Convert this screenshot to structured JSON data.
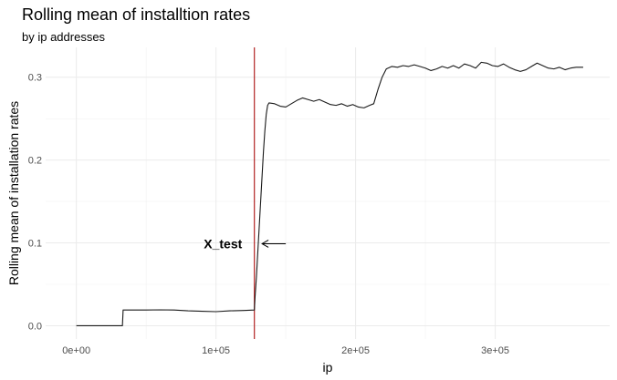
{
  "chart_data": {
    "type": "line",
    "title": "Rolling mean of installtion rates",
    "subtitle": "by ip addresses",
    "xlabel": "ip",
    "ylabel": "Rolling mean of installation rates",
    "xlim": [
      -22000,
      382000
    ],
    "ylim": [
      -0.016,
      0.336
    ],
    "x_ticks": [
      {
        "value": 0,
        "label": "0e+00"
      },
      {
        "value": 100000,
        "label": "1e+05"
      },
      {
        "value": 200000,
        "label": "2e+05"
      },
      {
        "value": 300000,
        "label": "3e+05"
      }
    ],
    "y_ticks": [
      {
        "value": 0.0,
        "label": "0.0"
      },
      {
        "value": 0.1,
        "label": "0.1"
      },
      {
        "value": 0.2,
        "label": "0.2"
      },
      {
        "value": 0.3,
        "label": "0.3"
      }
    ],
    "grid": true,
    "series": [
      {
        "color": "#1a1a1a",
        "points": [
          [
            0,
            0.0
          ],
          [
            33000,
            0.0
          ],
          [
            33500,
            0.019
          ],
          [
            50000,
            0.019
          ],
          [
            60000,
            0.0192
          ],
          [
            70000,
            0.019
          ],
          [
            80000,
            0.018
          ],
          [
            90000,
            0.0175
          ],
          [
            100000,
            0.017
          ],
          [
            110000,
            0.018
          ],
          [
            120000,
            0.0185
          ],
          [
            127500,
            0.019
          ],
          [
            128000,
            0.035
          ],
          [
            129000,
            0.06
          ],
          [
            130000,
            0.09
          ],
          [
            131000,
            0.12
          ],
          [
            132000,
            0.15
          ],
          [
            133000,
            0.18
          ],
          [
            134000,
            0.21
          ],
          [
            135000,
            0.235
          ],
          [
            136000,
            0.255
          ],
          [
            137000,
            0.266
          ],
          [
            138000,
            0.269
          ],
          [
            142000,
            0.268
          ],
          [
            146000,
            0.265
          ],
          [
            150000,
            0.264
          ],
          [
            154000,
            0.268
          ],
          [
            158000,
            0.272
          ],
          [
            162000,
            0.275
          ],
          [
            166000,
            0.273
          ],
          [
            170000,
            0.271
          ],
          [
            174000,
            0.273
          ],
          [
            178000,
            0.27
          ],
          [
            182000,
            0.267
          ],
          [
            186000,
            0.266
          ],
          [
            190000,
            0.268
          ],
          [
            194000,
            0.265
          ],
          [
            198000,
            0.267
          ],
          [
            202000,
            0.264
          ],
          [
            206000,
            0.263
          ],
          [
            210000,
            0.266
          ],
          [
            213000,
            0.268
          ],
          [
            216000,
            0.285
          ],
          [
            219000,
            0.3
          ],
          [
            222000,
            0.31
          ],
          [
            226000,
            0.313
          ],
          [
            230000,
            0.312
          ],
          [
            234000,
            0.314
          ],
          [
            238000,
            0.313
          ],
          [
            242000,
            0.315
          ],
          [
            246000,
            0.313
          ],
          [
            250000,
            0.311
          ],
          [
            254000,
            0.308
          ],
          [
            258000,
            0.31
          ],
          [
            262000,
            0.313
          ],
          [
            266000,
            0.311
          ],
          [
            270000,
            0.314
          ],
          [
            274000,
            0.311
          ],
          [
            278000,
            0.316
          ],
          [
            282000,
            0.314
          ],
          [
            286000,
            0.311
          ],
          [
            290000,
            0.318
          ],
          [
            294000,
            0.317
          ],
          [
            298000,
            0.314
          ],
          [
            302000,
            0.313
          ],
          [
            306000,
            0.316
          ],
          [
            310000,
            0.312
          ],
          [
            314000,
            0.309
          ],
          [
            318000,
            0.307
          ],
          [
            322000,
            0.309
          ],
          [
            326000,
            0.313
          ],
          [
            330000,
            0.317
          ],
          [
            334000,
            0.314
          ],
          [
            338000,
            0.311
          ],
          [
            342000,
            0.31
          ],
          [
            346000,
            0.312
          ],
          [
            350000,
            0.309
          ],
          [
            354000,
            0.311
          ],
          [
            358000,
            0.312
          ],
          [
            363000,
            0.312
          ]
        ]
      }
    ],
    "vline": {
      "x": 127500,
      "color": "#b22222"
    },
    "annotation": {
      "text": "X_test",
      "x": 105000,
      "y": 0.099,
      "arrow_to_x": 133000,
      "arrow_from_x": 150000
    }
  }
}
